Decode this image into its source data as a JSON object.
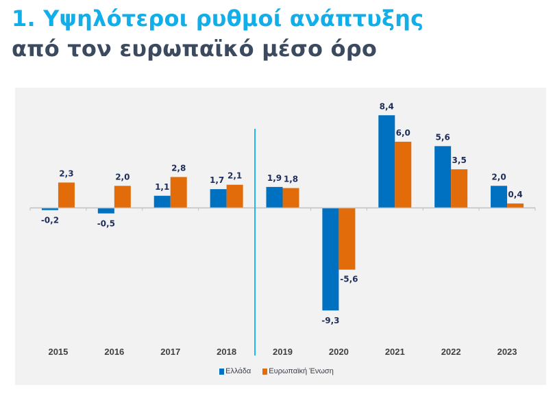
{
  "title": {
    "line1": "1. Υψηλότεροι ρυθμοί ανάπτυξης",
    "line2": "από τον ευρωπαϊκό μέσο όρο"
  },
  "colors": {
    "title_primary": "#12AEEA",
    "title_secondary": "#3C4A5F",
    "greece": "#0070C0",
    "eu": "#E36C0A",
    "divider": "#1FB5EC",
    "label": "#1F2D5A",
    "axis": "#BFBFBF",
    "panel": "#F2F2F2"
  },
  "chart_data": {
    "type": "bar",
    "title": "1. Υψηλότεροι ρυθμοί ανάπτυξης από τον ευρωπαϊκό μέσο όρο",
    "xlabel": "",
    "ylabel": "",
    "categories": [
      "2015",
      "2016",
      "2017",
      "2018",
      "2019",
      "2020",
      "2021",
      "2022",
      "2023"
    ],
    "series": [
      {
        "name": "Ελλάδα",
        "color": "#0070C0",
        "values": [
          -0.2,
          -0.5,
          1.1,
          1.7,
          1.9,
          -9.3,
          8.4,
          5.6,
          2.0
        ],
        "labels": [
          "-0,2",
          "-0,5",
          "1,1",
          "1,7",
          "1,9",
          "-9,3",
          "8,4",
          "5,6",
          "2,0"
        ]
      },
      {
        "name": "Ευρωπαϊκή Ένωση",
        "color": "#E36C0A",
        "values": [
          2.3,
          2.0,
          2.8,
          2.1,
          1.8,
          -5.6,
          6.0,
          3.5,
          0.4
        ],
        "labels": [
          "2,3",
          "2,0",
          "2,8",
          "2,1",
          "1,8",
          "-5,6",
          "6,0",
          "3,5",
          "0,4"
        ]
      }
    ],
    "ylim": [
      -10,
      9
    ],
    "grid": false,
    "y_axis_visible": false,
    "divider_after_category": "2018",
    "legend_position": "bottom-center"
  }
}
